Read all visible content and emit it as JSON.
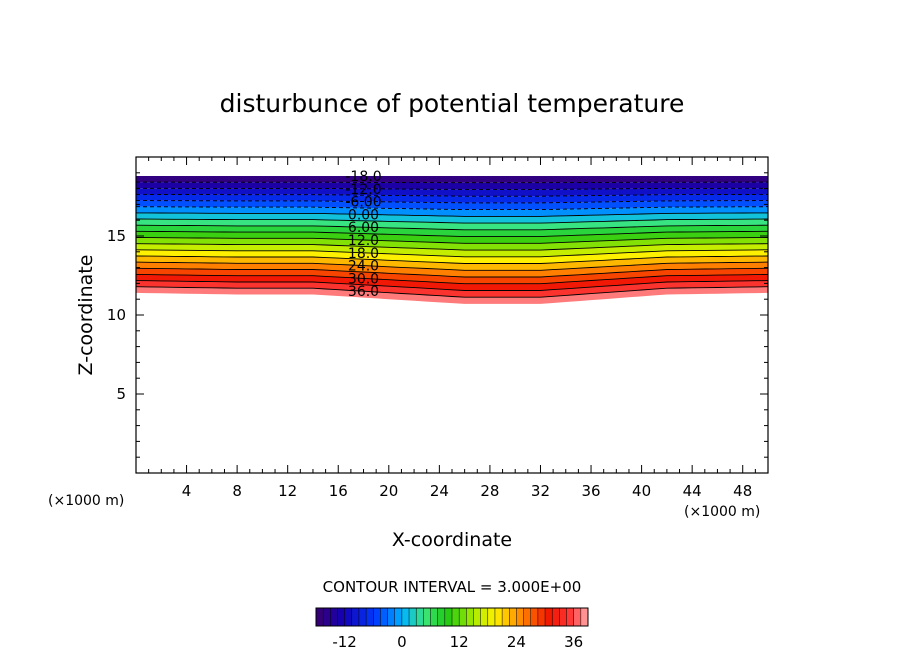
{
  "chart_data": {
    "type": "heatmap",
    "title": "disturbunce of potential temperature",
    "xlabel": "X-coordinate",
    "ylabel": "Z-coordinate",
    "x_unit": "(×1000 m)",
    "y_unit": "(×1000 m)",
    "xlim": [
      0,
      50
    ],
    "ylim": [
      0,
      20
    ],
    "x_ticks": [
      4,
      8,
      12,
      16,
      20,
      24,
      28,
      32,
      36,
      40,
      44,
      48
    ],
    "y_ticks": [
      5,
      10,
      15
    ],
    "contour_interval_text": "CONTOUR INTERVAL = 3.000E+00",
    "contour_labels": [
      "-18.0",
      "-12.0",
      "-6.00",
      "0.00",
      "6.00",
      "12.0",
      "18.0",
      "24.0",
      "30.0",
      "36.0"
    ],
    "colorbar": {
      "min": -18,
      "max": 39,
      "ticks": [
        "-12",
        "0",
        "12",
        "24",
        "36"
      ],
      "tick_values": [
        -12,
        0,
        12,
        24,
        36
      ]
    },
    "field": {
      "top_height_km": 18.8,
      "negative_values_dashed": true,
      "bottom_boundary_km": [
        {
          "x": 0,
          "z": 11.4
        },
        {
          "x": 8,
          "z": 11.3
        },
        {
          "x": 14,
          "z": 11.3
        },
        {
          "x": 20,
          "z": 11.0
        },
        {
          "x": 26,
          "z": 10.7
        },
        {
          "x": 32,
          "z": 10.7
        },
        {
          "x": 37,
          "z": 11.0
        },
        {
          "x": 42,
          "z": 11.3
        },
        {
          "x": 50,
          "z": 11.4
        }
      ]
    }
  }
}
